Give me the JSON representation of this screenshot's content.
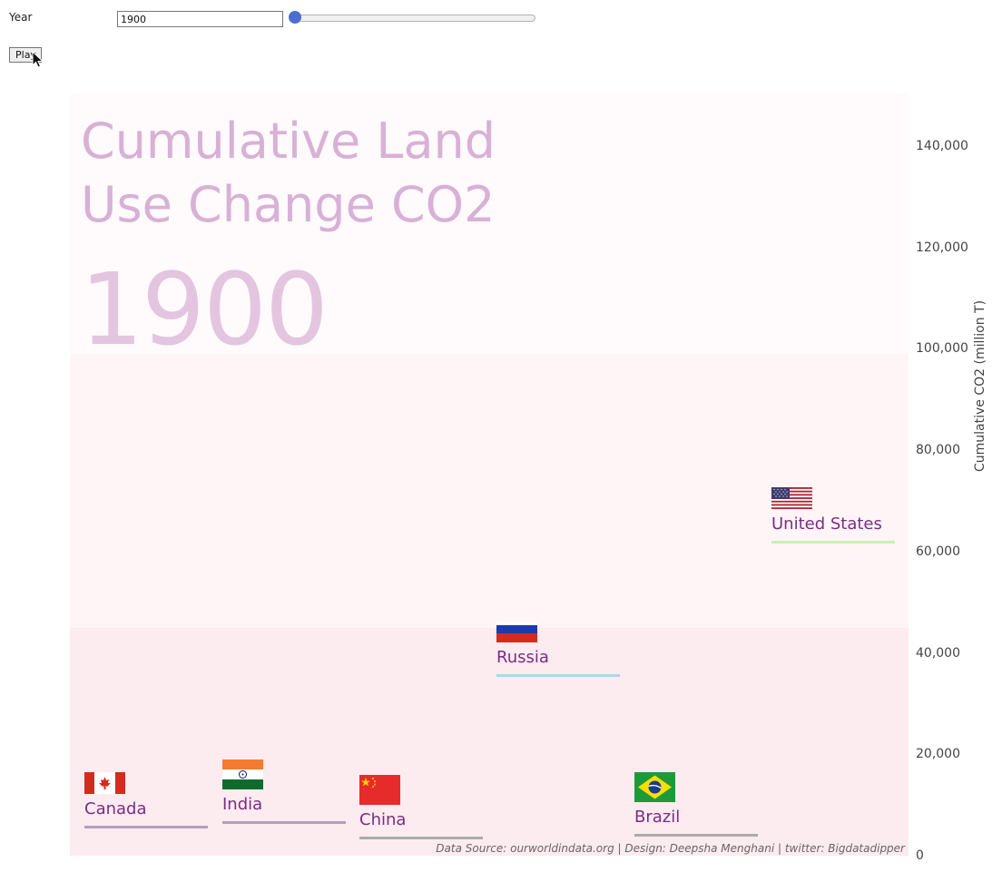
{
  "controls": {
    "year_label": "Year",
    "year_value": "1900",
    "slider_value": 1900,
    "play_label": "Play"
  },
  "chart_data": {
    "type": "scatter",
    "title": "Cumulative Land Use Change CO2",
    "title_lines": [
      "Cumulative Land",
      "Use Change CO2"
    ],
    "year": "1900",
    "ylabel": "Cumulative CO2 (million T)",
    "ylim": [
      0,
      150000
    ],
    "y_ticks": [
      "0",
      "20,000",
      "40,000",
      "60,000",
      "80,000",
      "100,000",
      "120,000",
      "140,000"
    ],
    "series": [
      {
        "name": "Canada",
        "value": 5800,
        "line_color": "#b4a0bc"
      },
      {
        "name": "India",
        "value": 6700,
        "line_color": "#b4a0bc"
      },
      {
        "name": "China",
        "value": 3500,
        "line_color": "#ababab"
      },
      {
        "name": "Russia",
        "value": 35600,
        "line_color": "#add8e6"
      },
      {
        "name": "Brazil",
        "value": 4100,
        "line_color": "#ababab"
      },
      {
        "name": "United States",
        "value": 62000,
        "line_color": "#c8f0b4"
      }
    ],
    "bands": [
      {
        "from": 0,
        "to": 45000,
        "color": "#fcebef"
      },
      {
        "from": 45000,
        "to": 99000,
        "color": "#fff5f7"
      },
      {
        "from": 99000,
        "to": 150000,
        "color": "#fffafb"
      }
    ]
  },
  "source_text": "Data Source: ourworldindata.org | Design: Deepsha Menghani | twitter: Bigdatadipper"
}
